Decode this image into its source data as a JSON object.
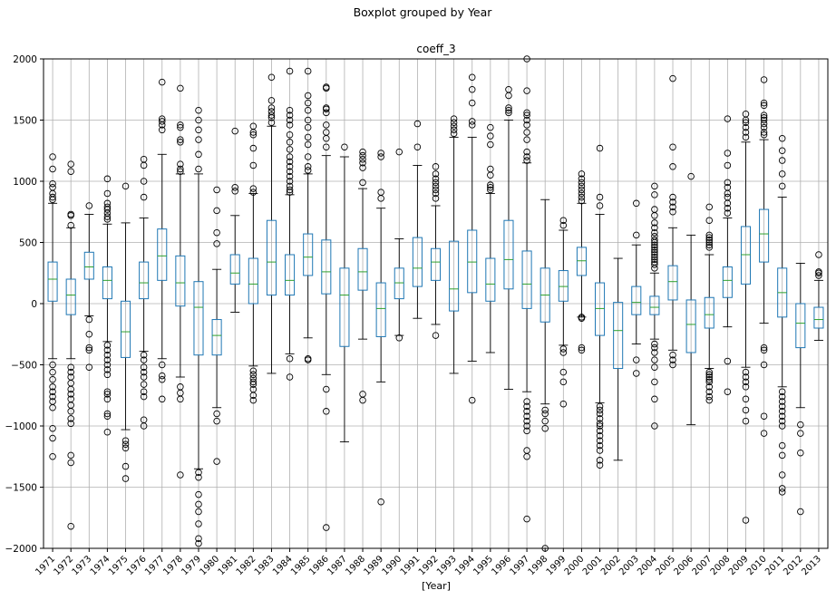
{
  "chart_data": {
    "type": "boxplot",
    "suptitle": "Boxplot grouped by Year",
    "title": "coeff_3",
    "xlabel": "[Year]",
    "ylabel": "",
    "ylim": [
      -2000,
      2000
    ],
    "yticks": [
      -2000,
      -1500,
      -1000,
      -500,
      0,
      500,
      1000,
      1500,
      2000
    ],
    "grid": true,
    "colors": {
      "box": "#1f77b4",
      "median": "#2ca02c",
      "whisker": "#000000",
      "flier": "#000000",
      "grid": "#b0b0b0"
    },
    "categories": [
      "1971",
      "1972",
      "1973",
      "1974",
      "1975",
      "1976",
      "1977",
      "1978",
      "1979",
      "1980",
      "1981",
      "1982",
      "1983",
      "1984",
      "1985",
      "1986",
      "1987",
      "1988",
      "1989",
      "1990",
      "1991",
      "1992",
      "1993",
      "1994",
      "1995",
      "1996",
      "1997",
      "1998",
      "1999",
      "2000",
      "2001",
      "2002",
      "2003",
      "2004",
      "2005",
      "2006",
      "2007",
      "2008",
      "2009",
      "2010",
      "2011",
      "2012",
      "2013"
    ],
    "boxes": [
      {
        "q1": 20,
        "median": 200,
        "q3": 340,
        "whislo": -450,
        "whishi": 820,
        "fliers": [
          1200,
          1100,
          980,
          950,
          900,
          870,
          850,
          -500,
          -560,
          -620,
          -680,
          -720,
          -760,
          -800,
          -850,
          -1020,
          -1100,
          -1250
        ]
      },
      {
        "q1": -90,
        "median": 70,
        "q3": 200,
        "whislo": -450,
        "whishi": 620,
        "fliers": [
          1140,
          1080,
          730,
          720,
          640,
          -520,
          -560,
          -600,
          -650,
          -700,
          -740,
          -780,
          -830,
          -880,
          -940,
          -980,
          -1240,
          -1300,
          -1820
        ]
      },
      {
        "q1": 200,
        "median": 300,
        "q3": 420,
        "whislo": -100,
        "whishi": 730,
        "fliers": [
          800,
          -130,
          -250,
          -360,
          -380,
          -520
        ]
      },
      {
        "q1": 40,
        "median": 190,
        "q3": 300,
        "whislo": -310,
        "whishi": 650,
        "fliers": [
          1020,
          900,
          820,
          790,
          770,
          740,
          710,
          690,
          -340,
          -380,
          -420,
          -460,
          -500,
          -540,
          -580,
          -720,
          -740,
          -780,
          -900,
          -920,
          -1050
        ]
      },
      {
        "q1": -440,
        "median": -230,
        "q3": 20,
        "whislo": -1030,
        "whishi": 660,
        "fliers": [
          960,
          -1120,
          -1150,
          -1180,
          -1330,
          -1430
        ]
      },
      {
        "q1": 40,
        "median": 170,
        "q3": 340,
        "whislo": -390,
        "whishi": 700,
        "fliers": [
          1180,
          1130,
          1000,
          870,
          -420,
          -460,
          -520,
          -560,
          -600,
          -660,
          -720,
          -760,
          -950,
          -1000
        ]
      },
      {
        "q1": 190,
        "median": 390,
        "q3": 610,
        "whislo": -450,
        "whishi": 1220,
        "fliers": [
          1810,
          1510,
          1490,
          1460,
          1420,
          -500,
          -590,
          -620,
          -780
        ]
      },
      {
        "q1": -20,
        "median": 170,
        "q3": 390,
        "whislo": -600,
        "whishi": 1060,
        "fliers": [
          1760,
          1460,
          1440,
          1340,
          1320,
          1140,
          1100,
          1080,
          -680,
          -730,
          -780,
          -1400
        ]
      },
      {
        "q1": -420,
        "median": -30,
        "q3": 180,
        "whislo": -1350,
        "whishi": 1060,
        "fliers": [
          1580,
          1500,
          1420,
          1340,
          1220,
          1100,
          -1380,
          -1420,
          -1560,
          -1640,
          -1700,
          -1800,
          -1920,
          -1960
        ]
      },
      {
        "q1": -420,
        "median": -260,
        "q3": -130,
        "whislo": -850,
        "whishi": 280,
        "fliers": [
          930,
          760,
          580,
          490,
          -900,
          -960,
          -1290
        ]
      },
      {
        "q1": 160,
        "median": 250,
        "q3": 400,
        "whislo": -70,
        "whishi": 720,
        "fliers": [
          1410,
          950,
          920
        ]
      },
      {
        "q1": 0,
        "median": 160,
        "q3": 370,
        "whislo": -510,
        "whishi": 900,
        "fliers": [
          1450,
          1400,
          1380,
          1270,
          1130,
          940,
          910,
          -550,
          -580,
          -610,
          -640,
          -660,
          -700,
          -750,
          -790
        ]
      },
      {
        "q1": 70,
        "median": 340,
        "q3": 680,
        "whislo": -570,
        "whishi": 1450,
        "fliers": [
          1850,
          1660,
          1600,
          1570,
          1540,
          1520,
          1480
        ]
      },
      {
        "q1": 70,
        "median": 190,
        "q3": 400,
        "whislo": -410,
        "whishi": 890,
        "fliers": [
          1900,
          1580,
          1540,
          1500,
          1460,
          1380,
          1320,
          1260,
          1200,
          1160,
          1120,
          1080,
          1040,
          1000,
          960,
          930,
          910,
          -450,
          -600
        ]
      },
      {
        "q1": 230,
        "median": 380,
        "q3": 570,
        "whislo": -280,
        "whishi": 1060,
        "fliers": [
          1900,
          1700,
          1640,
          1580,
          1500,
          1440,
          1360,
          1300,
          1200,
          1120,
          1090,
          -450,
          -460
        ]
      },
      {
        "q1": 80,
        "median": 260,
        "q3": 520,
        "whislo": -580,
        "whishi": 1210,
        "fliers": [
          1770,
          1760,
          1600,
          1590,
          1560,
          1460,
          1400,
          1350,
          1280,
          -700,
          -880,
          -1830
        ]
      },
      {
        "q1": -350,
        "median": 70,
        "q3": 290,
        "whislo": -1130,
        "whishi": 1200,
        "fliers": [
          1280
        ]
      },
      {
        "q1": 110,
        "median": 260,
        "q3": 450,
        "whislo": -290,
        "whishi": 940,
        "fliers": [
          1240,
          1210,
          1180,
          1150,
          1110,
          990,
          -740,
          -790
        ]
      },
      {
        "q1": -270,
        "median": -40,
        "q3": 170,
        "whislo": -640,
        "whishi": 780,
        "fliers": [
          1230,
          1200,
          910,
          860,
          -1620
        ]
      },
      {
        "q1": 40,
        "median": 170,
        "q3": 290,
        "whislo": -260,
        "whishi": 530,
        "fliers": [
          1240,
          -280
        ]
      },
      {
        "q1": 140,
        "median": 290,
        "q3": 540,
        "whislo": -120,
        "whishi": 1130,
        "fliers": [
          1470,
          1280
        ]
      },
      {
        "q1": 190,
        "median": 340,
        "q3": 450,
        "whislo": -170,
        "whishi": 800,
        "fliers": [
          1120,
          1060,
          1020,
          990,
          960,
          930,
          900,
          860,
          -260
        ]
      },
      {
        "q1": -60,
        "median": 120,
        "q3": 510,
        "whislo": -570,
        "whishi": 1360,
        "fliers": [
          1510,
          1480,
          1450,
          1420,
          1390
        ]
      },
      {
        "q1": 90,
        "median": 340,
        "q3": 600,
        "whislo": -470,
        "whishi": 1360,
        "fliers": [
          1850,
          1750,
          1640,
          1490,
          1460,
          -790
        ]
      },
      {
        "q1": 20,
        "median": 160,
        "q3": 370,
        "whislo": -400,
        "whishi": 900,
        "fliers": [
          1440,
          1370,
          1300,
          1100,
          1050,
          970,
          950,
          930
        ]
      },
      {
        "q1": 120,
        "median": 360,
        "q3": 680,
        "whislo": -700,
        "whishi": 1500,
        "fliers": [
          1750,
          1700,
          1600,
          1580,
          1560
        ]
      },
      {
        "q1": -40,
        "median": 160,
        "q3": 430,
        "whislo": -720,
        "whishi": 1150,
        "fliers": [
          2000,
          1740,
          1560,
          1540,
          1500,
          1460,
          1400,
          1340,
          1240,
          1200,
          1170,
          -800,
          -840,
          -880,
          -920,
          -960,
          -1000,
          -1040,
          -1200,
          -1250,
          -1760
        ]
      },
      {
        "q1": -150,
        "median": 70,
        "q3": 290,
        "whislo": -820,
        "whishi": 850,
        "fliers": [
          -870,
          -900,
          -960,
          -1020,
          -2000
        ]
      },
      {
        "q1": 20,
        "median": 140,
        "q3": 270,
        "whislo": -340,
        "whishi": 600,
        "fliers": [
          680,
          640,
          -370,
          -400,
          -560,
          -640,
          -820
        ]
      },
      {
        "q1": 230,
        "median": 350,
        "q3": 460,
        "whislo": -110,
        "whishi": 820,
        "fliers": [
          1060,
          1020,
          990,
          960,
          930,
          900,
          870,
          840,
          -110,
          -120,
          -360,
          -380
        ]
      },
      {
        "q1": -260,
        "median": -40,
        "q3": 170,
        "whislo": -810,
        "whishi": 730,
        "fliers": [
          1270,
          870,
          800,
          -840,
          -870,
          -900,
          -940,
          -980,
          -1000,
          -1040,
          -1080,
          -1120,
          -1160,
          -1200,
          -1280,
          -1320
        ]
      },
      {
        "q1": -530,
        "median": -220,
        "q3": 10,
        "whislo": -1280,
        "whishi": 370,
        "fliers": []
      },
      {
        "q1": -90,
        "median": 10,
        "q3": 140,
        "whislo": -330,
        "whishi": 480,
        "fliers": [
          820,
          560,
          -460,
          -570
        ]
      },
      {
        "q1": -90,
        "median": -30,
        "q3": 60,
        "whislo": -290,
        "whishi": 250,
        "fliers": [
          960,
          890,
          770,
          720,
          660,
          620,
          580,
          550,
          520,
          500,
          480,
          460,
          440,
          420,
          400,
          380,
          360,
          340,
          320,
          290,
          -330,
          -360,
          -400,
          -460,
          -520,
          -640,
          -780,
          -1000
        ]
      },
      {
        "q1": 30,
        "median": 180,
        "q3": 310,
        "whislo": -380,
        "whishi": 620,
        "fliers": [
          1840,
          1280,
          1120,
          870,
          830,
          790,
          750,
          -420,
          -460,
          -500
        ]
      },
      {
        "q1": -400,
        "median": -170,
        "q3": 30,
        "whislo": -990,
        "whishi": 560,
        "fliers": [
          1040
        ]
      },
      {
        "q1": -200,
        "median": -90,
        "q3": 50,
        "whislo": -530,
        "whishi": 400,
        "fliers": [
          790,
          680,
          560,
          540,
          520,
          500,
          480,
          460,
          -560,
          -580,
          -600,
          -620,
          -640,
          -680,
          -720,
          -760,
          -790
        ]
      },
      {
        "q1": 50,
        "median": 190,
        "q3": 300,
        "whislo": -190,
        "whishi": 700,
        "fliers": [
          1510,
          1230,
          1130,
          990,
          950,
          900,
          870,
          820,
          780,
          740,
          -470,
          -720
        ]
      },
      {
        "q1": 160,
        "median": 400,
        "q3": 630,
        "whislo": -520,
        "whishi": 1320,
        "fliers": [
          1550,
          1500,
          1480,
          1440,
          1400,
          1360,
          -560,
          -600,
          -640,
          -680,
          -780,
          -870,
          -960,
          -1770
        ]
      },
      {
        "q1": 340,
        "median": 570,
        "q3": 770,
        "whislo": -160,
        "whishi": 1340,
        "fliers": [
          1830,
          1640,
          1620,
          1540,
          1520,
          1500,
          1470,
          1440,
          1400,
          1380,
          -360,
          -380,
          -500,
          -920,
          -1060
        ]
      },
      {
        "q1": -110,
        "median": 90,
        "q3": 290,
        "whislo": -680,
        "whishi": 870,
        "fliers": [
          1350,
          1250,
          1170,
          1060,
          960,
          -720,
          -760,
          -800,
          -840,
          -880,
          -920,
          -960,
          -1000,
          -1160,
          -1240,
          -1400,
          -1510,
          -1540
        ]
      },
      {
        "q1": -360,
        "median": -160,
        "q3": 0,
        "whislo": -850,
        "whishi": 330,
        "fliers": [
          -990,
          -1060,
          -1220,
          -1700
        ]
      },
      {
        "q1": -200,
        "median": -130,
        "q3": -30,
        "whislo": -300,
        "whishi": 190,
        "fliers": [
          400,
          260,
          250,
          230
        ]
      }
    ]
  }
}
